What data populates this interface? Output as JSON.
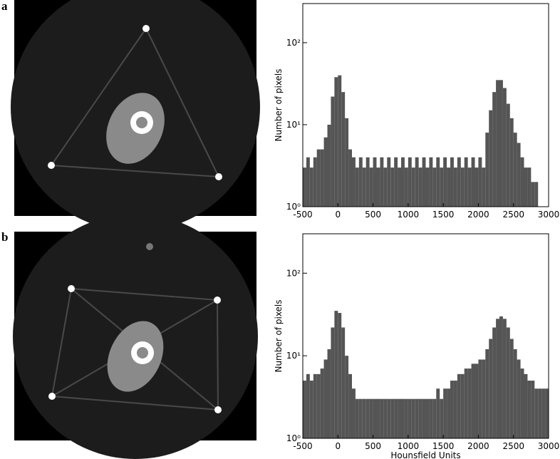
{
  "panel_labels": [
    "a",
    "b"
  ],
  "chart_data": [
    {
      "type": "histogram",
      "ylabel": "Number of pixels",
      "color": "#555555",
      "bins": [
        -500,
        -450,
        -400,
        -350,
        -300,
        -250,
        -200,
        -150,
        -100,
        -50,
        0,
        50,
        100,
        150,
        200,
        250,
        300,
        350,
        400,
        450,
        500,
        550,
        600,
        650,
        700,
        750,
        800,
        850,
        900,
        950,
        1000,
        1050,
        1100,
        1150,
        1200,
        1250,
        1300,
        1350,
        1400,
        1450,
        1500,
        1550,
        1600,
        1650,
        1700,
        1750,
        1800,
        1850,
        1900,
        1950,
        2000,
        2050,
        2100,
        2150,
        2200,
        2250,
        2300,
        2350,
        2400,
        2450,
        2500,
        2550,
        2600,
        2650,
        2700,
        2750,
        2800,
        2850,
        2900,
        2950,
        3000
      ],
      "values": [
        3,
        4,
        3,
        4,
        5,
        5,
        7,
        10,
        22,
        38,
        40,
        25,
        12,
        5,
        4,
        3,
        4,
        3,
        4,
        3,
        4,
        3,
        4,
        3,
        4,
        3,
        4,
        3,
        4,
        3,
        4,
        3,
        4,
        3,
        4,
        3,
        4,
        3,
        4,
        3,
        4,
        3,
        4,
        3,
        4,
        3,
        4,
        3,
        4,
        3,
        4,
        3,
        8,
        15,
        25,
        35,
        35,
        28,
        18,
        12,
        8,
        6,
        4,
        3,
        3,
        2,
        2,
        1,
        1,
        1
      ],
      "xlim": [
        -500,
        3000
      ],
      "xticks": [
        -500,
        0,
        500,
        1000,
        1500,
        2000,
        2500,
        3000
      ],
      "ylim": [
        1,
        300
      ],
      "log_y": true,
      "yticks": [
        {
          "value": 1,
          "label": "10⁰"
        },
        {
          "value": 10,
          "label": "10¹"
        },
        {
          "value": 100,
          "label": "10²"
        }
      ]
    },
    {
      "type": "histogram",
      "ylabel": "Number of pixels",
      "xlabel": "Hounsfield Units",
      "color": "#555555",
      "bins": [
        -500,
        -450,
        -400,
        -350,
        -300,
        -250,
        -200,
        -150,
        -100,
        -50,
        0,
        50,
        100,
        150,
        200,
        250,
        300,
        350,
        400,
        450,
        500,
        550,
        600,
        650,
        700,
        750,
        800,
        850,
        900,
        950,
        1000,
        1050,
        1100,
        1150,
        1200,
        1250,
        1300,
        1350,
        1400,
        1450,
        1500,
        1550,
        1600,
        1650,
        1700,
        1750,
        1800,
        1850,
        1900,
        1950,
        2000,
        2050,
        2100,
        2150,
        2200,
        2250,
        2300,
        2350,
        2400,
        2450,
        2500,
        2550,
        2600,
        2650,
        2700,
        2750,
        2800,
        2850,
        2900,
        2950,
        3000
      ],
      "values": [
        5,
        6,
        5,
        6,
        6,
        7,
        9,
        12,
        22,
        35,
        33,
        22,
        10,
        6,
        4,
        3,
        3,
        3,
        3,
        3,
        3,
        3,
        3,
        3,
        3,
        3,
        3,
        3,
        3,
        3,
        3,
        3,
        3,
        3,
        3,
        3,
        3,
        3,
        4,
        3,
        4,
        4,
        5,
        5,
        6,
        6,
        7,
        7,
        8,
        8,
        9,
        9,
        12,
        16,
        22,
        28,
        30,
        28,
        22,
        16,
        12,
        9,
        7,
        6,
        5,
        5,
        4,
        4,
        4,
        4
      ],
      "xlim": [
        -500,
        3000
      ],
      "xticks": [
        -500,
        0,
        500,
        1000,
        1500,
        2000,
        2500,
        3000
      ],
      "ylim": [
        1,
        300
      ],
      "log_y": true,
      "yticks": [
        {
          "value": 1,
          "label": "10⁰"
        },
        {
          "value": 10,
          "label": "10¹"
        },
        {
          "value": 100,
          "label": "10²"
        }
      ]
    }
  ]
}
